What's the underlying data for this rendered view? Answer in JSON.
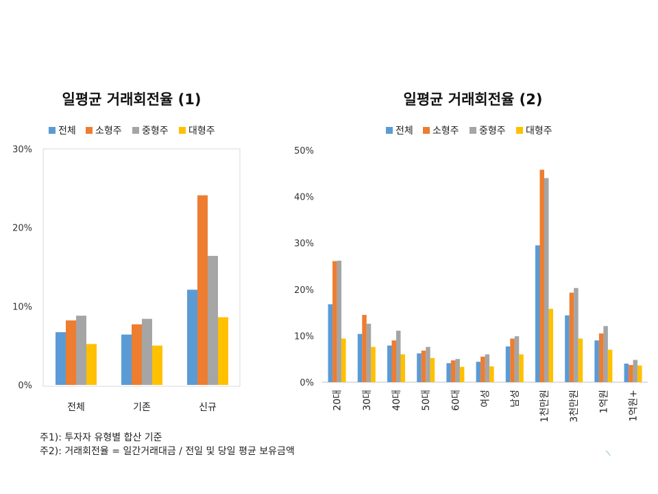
{
  "colors": {
    "series": [
      "#5b9bd5",
      "#ed7d31",
      "#a5a5a5",
      "#ffc000"
    ],
    "frame": "#d9d9d9",
    "accent_mark": "#9fd4de"
  },
  "chart_data": [
    {
      "type": "bar",
      "title": "일평균 거래회전율 (1)",
      "categories": [
        "전체",
        "기존",
        "신규"
      ],
      "ylim": [
        0,
        0.3
      ],
      "yticks": [
        0,
        0.1,
        0.2,
        0.3
      ],
      "ytick_labels": [
        "0%",
        "10%",
        "20%",
        "30%"
      ],
      "legend_position": "top-center",
      "grid": false,
      "series": [
        {
          "name": "전체",
          "values": [
            0.067,
            0.064,
            0.121
          ]
        },
        {
          "name": "소형주",
          "values": [
            0.082,
            0.077,
            0.241
          ]
        },
        {
          "name": "중형주",
          "values": [
            0.088,
            0.084,
            0.164
          ]
        },
        {
          "name": "대형주",
          "values": [
            0.052,
            0.05,
            0.086
          ]
        }
      ]
    },
    {
      "type": "bar",
      "title": "일평균 거래회전율 (2)",
      "categories": [
        "20대",
        "30대",
        "40대",
        "50대",
        "60대",
        "여성",
        "남성",
        "1천만원",
        "3천만원",
        "1억원",
        "1억원+"
      ],
      "ylim": [
        0,
        0.5
      ],
      "yticks": [
        0,
        0.1,
        0.2,
        0.3,
        0.4,
        0.5
      ],
      "ytick_labels": [
        "0%",
        "10%",
        "20%",
        "30%",
        "40%",
        "50%"
      ],
      "legend_position": "top-center",
      "grid": false,
      "series": [
        {
          "name": "전체",
          "values": [
            0.168,
            0.104,
            0.079,
            0.062,
            0.041,
            0.044,
            0.077,
            0.295,
            0.144,
            0.09,
            0.04
          ]
        },
        {
          "name": "소형주",
          "values": [
            0.261,
            0.145,
            0.09,
            0.068,
            0.047,
            0.055,
            0.094,
            0.458,
            0.193,
            0.105,
            0.037
          ]
        },
        {
          "name": "중형주",
          "values": [
            0.262,
            0.126,
            0.111,
            0.076,
            0.05,
            0.06,
            0.099,
            0.44,
            0.203,
            0.121,
            0.048
          ]
        },
        {
          "name": "대형주",
          "values": [
            0.094,
            0.076,
            0.06,
            0.052,
            0.033,
            0.034,
            0.06,
            0.158,
            0.094,
            0.07,
            0.036
          ]
        }
      ]
    }
  ],
  "notes": [
    "주1): 투자자 유형별 합산 기준",
    "주2): 거래회전율 = 일간거래대금 / 전일 및 당일 평균 보유금액"
  ]
}
